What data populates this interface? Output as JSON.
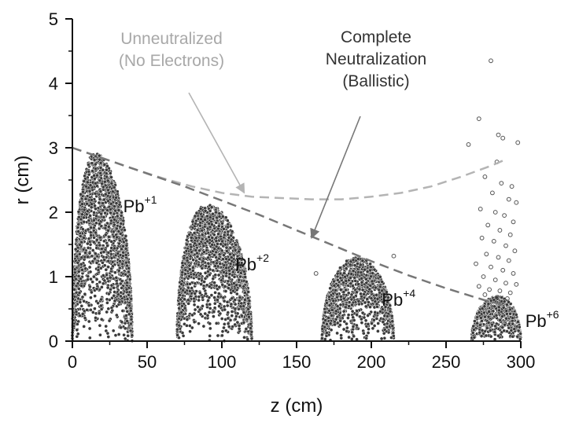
{
  "chart_data": {
    "type": "scatter",
    "xlabel": "z (cm)",
    "ylabel": "r (cm)",
    "xlim": [
      0,
      300
    ],
    "ylim": [
      0,
      5
    ],
    "x_ticks": [
      "0",
      "50",
      "100",
      "150",
      "200",
      "250",
      "300"
    ],
    "y_ticks": [
      "0",
      "1",
      "2",
      "3",
      "4",
      "5"
    ],
    "grid": false,
    "curves": [
      {
        "label_lines": [
          "Unneutralized",
          "(No Electrons)"
        ],
        "color": "#b4b4b4",
        "style": "dashed",
        "x": [
          0,
          20,
          40,
          60,
          80,
          100,
          120,
          140,
          160,
          180,
          200,
          220,
          240,
          260,
          280,
          290
        ],
        "y": [
          3.0,
          2.84,
          2.68,
          2.53,
          2.4,
          2.3,
          2.24,
          2.22,
          2.2,
          2.2,
          2.24,
          2.3,
          2.4,
          2.55,
          2.72,
          2.82
        ],
        "arrow_to": [
          115,
          2.3
        ]
      },
      {
        "label_lines": [
          "Complete",
          "Neutralization",
          "(Ballistic)"
        ],
        "color": "#777777",
        "style": "dashed",
        "x": [
          0,
          25,
          50,
          75,
          100,
          125,
          150,
          175,
          200,
          225,
          250,
          275,
          290
        ],
        "y": [
          3.0,
          2.8,
          2.6,
          2.4,
          2.18,
          1.96,
          1.72,
          1.48,
          1.24,
          1.02,
          0.82,
          0.64,
          0.55
        ],
        "arrow_to": [
          160,
          1.6
        ]
      }
    ],
    "bunches": [
      {
        "label": "Pb",
        "charge": "+1",
        "z_min": 0,
        "z_max": 40,
        "z_peak": 15,
        "r_peak": 2.92,
        "label_at": [
          34,
          2.0
        ]
      },
      {
        "label": "Pb",
        "charge": "+2",
        "z_min": 70,
        "z_max": 120,
        "z_peak": 90,
        "r_peak": 2.12,
        "label_at": [
          109,
          1.1
        ]
      },
      {
        "label": "Pb",
        "charge": "+4",
        "z_min": 167,
        "z_max": 215,
        "z_peak": 190,
        "r_peak": 1.3,
        "label_at": [
          207,
          0.55
        ]
      },
      {
        "label": "Pb",
        "charge": "+6",
        "z_min": 267,
        "z_max": 300,
        "z_peak": 285,
        "r_peak": 0.7,
        "label_at": [
          303,
          0.22
        ]
      }
    ],
    "stray_points": [
      [
        280,
        4.35
      ],
      [
        272,
        3.45
      ],
      [
        265,
        3.05
      ],
      [
        285,
        3.2
      ],
      [
        288,
        3.15
      ],
      [
        298,
        3.08
      ],
      [
        284,
        2.78
      ],
      [
        276,
        2.55
      ],
      [
        287,
        2.45
      ],
      [
        294,
        2.4
      ],
      [
        281,
        2.3
      ],
      [
        292,
        2.2
      ],
      [
        297,
        2.15
      ],
      [
        273,
        2.05
      ],
      [
        283,
        2.0
      ],
      [
        289,
        1.95
      ],
      [
        295,
        1.85
      ],
      [
        278,
        1.8
      ],
      [
        286,
        1.72
      ],
      [
        293,
        1.65
      ],
      [
        274,
        1.6
      ],
      [
        282,
        1.55
      ],
      [
        290,
        1.48
      ],
      [
        296,
        1.4
      ],
      [
        277,
        1.35
      ],
      [
        285,
        1.3
      ],
      [
        292,
        1.25
      ],
      [
        270,
        1.2
      ],
      [
        280,
        1.15
      ],
      [
        288,
        1.1
      ],
      [
        295,
        1.05
      ],
      [
        275,
        1.0
      ],
      [
        283,
        0.95
      ],
      [
        290,
        0.9
      ],
      [
        297,
        0.88
      ],
      [
        272,
        0.85
      ],
      [
        279,
        0.8
      ],
      [
        286,
        0.78
      ],
      [
        293,
        0.75
      ],
      [
        276,
        0.72
      ],
      [
        284,
        0.68
      ],
      [
        291,
        0.66
      ],
      [
        215,
        1.32
      ],
      [
        163,
        1.05
      ]
    ]
  }
}
